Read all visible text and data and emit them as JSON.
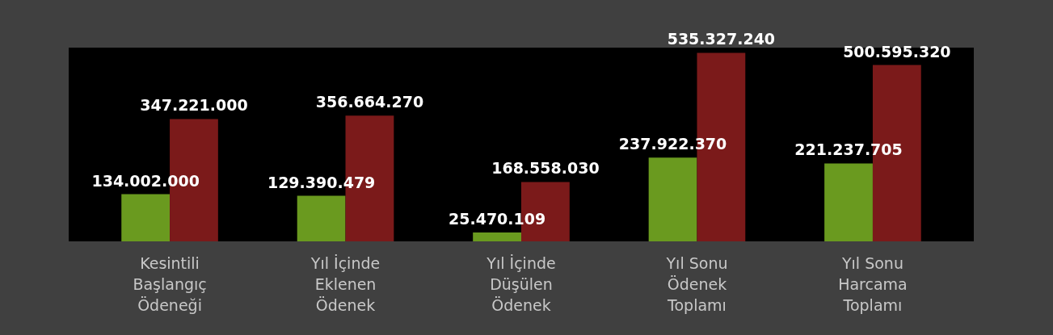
{
  "chart_data": {
    "type": "bar",
    "categories": [
      "Kesintili Başlangıç Ödeneği",
      "Yıl İçinde Eklenen Ödenek",
      "Yıl İçinde Düşülen Ödenek",
      "Yıl Sonu Ödenek Toplamı",
      "Yıl Sonu Harcama Toplamı"
    ],
    "series": [
      {
        "color": "#6a9a1f",
        "values": [
          134002000,
          129390479,
          25470109,
          237922370,
          221237705
        ],
        "value_labels": [
          "134.002.000",
          "129.390.479",
          "25.470.109",
          "237.922.370",
          "221.237.705"
        ]
      },
      {
        "color": "#7b1a1a",
        "values": [
          347221000,
          356664270,
          168558030,
          535327240,
          500595320
        ],
        "value_labels": [
          "347.221.000",
          "356.664.270",
          "168.558.030",
          "535.327.240",
          "500.595.320"
        ]
      }
    ],
    "legend": false,
    "tick_labels": "x"
  }
}
